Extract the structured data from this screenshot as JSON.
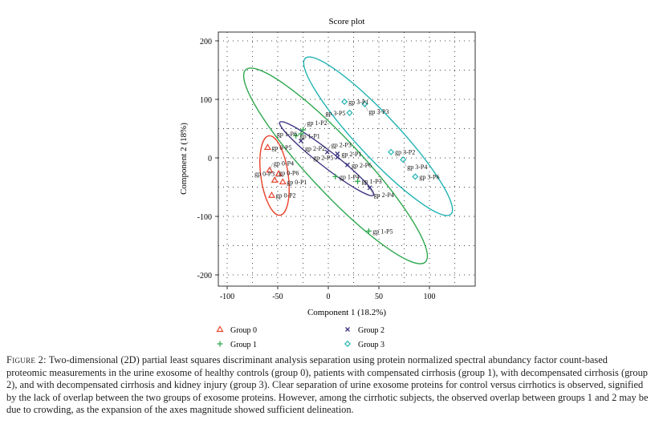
{
  "chart_data": {
    "type": "scatter",
    "title": "Score plot",
    "xlabel": "Component 1 (18.2%)",
    "ylabel": "Component 2 (18%)",
    "xlim": [
      -110,
      145
    ],
    "ylim": [
      -215,
      215
    ],
    "xticks": [
      -100,
      -50,
      0,
      50,
      100
    ],
    "yticks": [
      -200,
      -100,
      0,
      100,
      200
    ],
    "grid": true,
    "legend_position": "bottom",
    "series": [
      {
        "name": "Group 0",
        "marker": "triangle",
        "color": "#e8432d",
        "points": [
          {
            "label": "gp 0-P1",
            "x": -45,
            "y": -41
          },
          {
            "label": "gp 0-P2",
            "x": -56,
            "y": -64
          },
          {
            "label": "gp 0-P3",
            "x": -49,
            "y": -27
          },
          {
            "label": "gp 0-P4",
            "x": -58,
            "y": -21
          },
          {
            "label": "gp 0-P5",
            "x": -60,
            "y": 18
          },
          {
            "label": "gp 0-P6",
            "x": -53,
            "y": -38
          }
        ]
      },
      {
        "name": "Group 1",
        "marker": "plus",
        "color": "#2fa84f",
        "points": [
          {
            "label": "gp 1-P1",
            "x": -32,
            "y": 38
          },
          {
            "label": "gp 1-P2",
            "x": -25,
            "y": 48
          },
          {
            "label": "gp 1-P3",
            "x": 29,
            "y": -40
          },
          {
            "label": "gp 1-P4",
            "x": 7,
            "y": -32
          },
          {
            "label": "gp 1-P5",
            "x": 40,
            "y": -125
          },
          {
            "label": "gp 1-P6",
            "x": -27,
            "y": 41
          }
        ]
      },
      {
        "name": "Group 2",
        "marker": "cross",
        "color": "#3b3480",
        "points": [
          {
            "label": "gp 2-P1",
            "x": 9,
            "y": 7
          },
          {
            "label": "gp 2-P2",
            "x": -27,
            "y": 29
          },
          {
            "label": "gp 2-P3",
            "x": -1,
            "y": 10
          },
          {
            "label": "gp 2-P4",
            "x": 41,
            "y": -51
          },
          {
            "label": "gp 2-P5",
            "x": 9,
            "y": 1
          },
          {
            "label": "gp 2-P6",
            "x": 19,
            "y": -12
          }
        ]
      },
      {
        "name": "Group 3",
        "marker": "diamond",
        "color": "#22b3b3",
        "points": [
          {
            "label": "gp 3-P1",
            "x": 16,
            "y": 96
          },
          {
            "label": "gp 3-P2",
            "x": 62,
            "y": 10
          },
          {
            "label": "gp 3-P3",
            "x": 36,
            "y": 92
          },
          {
            "label": "gp 3-P4",
            "x": 74,
            "y": -3
          },
          {
            "label": "gp 3-P5",
            "x": 21,
            "y": 77
          },
          {
            "label": "gp 3-P6",
            "x": 86,
            "y": -32
          }
        ]
      }
    ]
  },
  "caption": {
    "figure_label": "Figure 2:",
    "text": "Two-dimensional (2D) partial least squares discriminant analysis separation using protein normalized spectral abundancy factor count-based proteomic measurements in the urine exosome of healthy controls (group 0), patients with compensated cirrhosis (group 1), with decompensated cirrhosis (group 2), and with decompensated cirrhosis and kidney injury (group 3). Clear separation of urine exosome proteins for control versus cirrhotics is observed, signified by the lack of overlap between the two groups of exosome proteins. However, among the cirrhotic subjects, the observed overlap between groups 1 and 2 may be due to crowding, as the expansion of the axes magnitude showed sufficient delineation."
  }
}
